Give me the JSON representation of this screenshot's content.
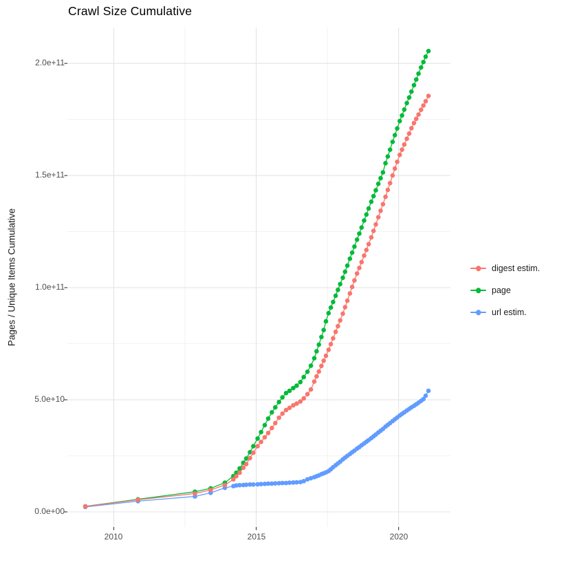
{
  "chart_data": {
    "type": "scatter",
    "subtype": "cumulative line + point series (ggplot style)",
    "title": "Crawl Size Cumulative",
    "xlabel": "",
    "ylabel": "Pages / Unique Items Cumulative",
    "unit": "point values given as [year, billions_of_items]; 50 billions = 5.0e+10 on axis",
    "legend_position": "right-middle",
    "grid": "white panel, light-gray major and minor gridlines, no panel border",
    "axes": {
      "x_tick_labels": [
        "2010",
        "2015",
        "2020"
      ],
      "x_tick_values": [
        2010,
        2015,
        2020
      ],
      "x_minor_values": [
        2012.5,
        2017.5
      ],
      "y_tick_labels": [
        "0.0e+00",
        "5.0e+10",
        "1.0e+11",
        "1.5e+11",
        "2.0e+11"
      ],
      "y_tick_values_billions": [
        0,
        50,
        100,
        150,
        200
      ],
      "y_minor_values_billions": [
        25,
        75,
        125,
        175
      ],
      "xlim": [
        2008.37,
        2021.82
      ],
      "ylim_billions": [
        -6.75,
        216
      ]
    },
    "series": [
      {
        "name": "digest estim.",
        "color": "#F8766D",
        "points": [
          [
            2009.0,
            2.4
          ],
          [
            2010.85,
            5.4
          ],
          [
            2012.85,
            8.2
          ],
          [
            2013.4,
            9.8
          ],
          [
            2013.9,
            12.0
          ],
          [
            2014.2,
            14.5
          ],
          [
            2014.3,
            15.9
          ],
          [
            2014.42,
            17.5
          ],
          [
            2014.55,
            19.7
          ],
          [
            2014.65,
            21.3
          ],
          [
            2014.78,
            24.0
          ],
          [
            2014.9,
            26.4
          ],
          [
            2015.05,
            29.3
          ],
          [
            2015.17,
            31.2
          ],
          [
            2015.3,
            33.3
          ],
          [
            2015.42,
            35.2
          ],
          [
            2015.55,
            37.4
          ],
          [
            2015.67,
            39.6
          ],
          [
            2015.8,
            42.0
          ],
          [
            2015.92,
            43.8
          ],
          [
            2016.05,
            45.4
          ],
          [
            2016.17,
            46.4
          ],
          [
            2016.3,
            47.5
          ],
          [
            2016.42,
            48.3
          ],
          [
            2016.55,
            49.2
          ],
          [
            2016.67,
            50.6
          ],
          [
            2016.8,
            52.5
          ],
          [
            2016.92,
            54.6
          ],
          [
            2017.04,
            58.1
          ],
          [
            2017.12,
            60.4
          ],
          [
            2017.2,
            62.6
          ],
          [
            2017.29,
            65.1
          ],
          [
            2017.37,
            67.4
          ],
          [
            2017.45,
            69.6
          ],
          [
            2017.54,
            72.3
          ],
          [
            2017.62,
            74.8
          ],
          [
            2017.7,
            77.4
          ],
          [
            2017.79,
            80.3
          ],
          [
            2017.87,
            82.8
          ],
          [
            2017.95,
            85.4
          ],
          [
            2018.04,
            88.4
          ],
          [
            2018.12,
            91.3
          ],
          [
            2018.2,
            94.2
          ],
          [
            2018.29,
            97.4
          ],
          [
            2018.37,
            100.3
          ],
          [
            2018.45,
            103.2
          ],
          [
            2018.54,
            106.3
          ],
          [
            2018.62,
            108.8
          ],
          [
            2018.7,
            111.4
          ],
          [
            2018.79,
            114.3
          ],
          [
            2018.87,
            116.8
          ],
          [
            2018.95,
            119.4
          ],
          [
            2019.04,
            122.4
          ],
          [
            2019.12,
            125.3
          ],
          [
            2019.2,
            128.2
          ],
          [
            2019.29,
            131.4
          ],
          [
            2019.37,
            134.3
          ],
          [
            2019.45,
            137.2
          ],
          [
            2019.54,
            140.5
          ],
          [
            2019.62,
            143.6
          ],
          [
            2019.7,
            146.6
          ],
          [
            2019.79,
            150.0
          ],
          [
            2019.87,
            153.1
          ],
          [
            2019.95,
            156.1
          ],
          [
            2020.04,
            159.2
          ],
          [
            2020.12,
            161.5
          ],
          [
            2020.2,
            163.8
          ],
          [
            2020.29,
            166.4
          ],
          [
            2020.37,
            168.7
          ],
          [
            2020.45,
            171.1
          ],
          [
            2020.54,
            173.4
          ],
          [
            2020.62,
            175.3
          ],
          [
            2020.7,
            177.2
          ],
          [
            2020.79,
            179.3
          ],
          [
            2020.87,
            181.2
          ],
          [
            2020.95,
            183.1
          ],
          [
            2021.05,
            185.5
          ]
        ]
      },
      {
        "name": "page",
        "color": "#00BA38",
        "points": [
          [
            2009.0,
            2.5
          ],
          [
            2010.85,
            5.6
          ],
          [
            2012.85,
            9.0
          ],
          [
            2013.4,
            10.5
          ],
          [
            2013.9,
            13.0
          ],
          [
            2014.2,
            16.0
          ],
          [
            2014.3,
            17.5
          ],
          [
            2014.42,
            19.4
          ],
          [
            2014.55,
            21.9
          ],
          [
            2014.65,
            23.8
          ],
          [
            2014.78,
            26.6
          ],
          [
            2014.9,
            29.3
          ],
          [
            2015.05,
            32.7
          ],
          [
            2015.17,
            35.6
          ],
          [
            2015.3,
            38.7
          ],
          [
            2015.42,
            41.6
          ],
          [
            2015.55,
            44.4
          ],
          [
            2015.67,
            46.6
          ],
          [
            2015.8,
            49.0
          ],
          [
            2015.92,
            51.1
          ],
          [
            2016.05,
            53.0
          ],
          [
            2016.17,
            54.0
          ],
          [
            2016.3,
            55.2
          ],
          [
            2016.42,
            56.3
          ],
          [
            2016.55,
            57.9
          ],
          [
            2016.67,
            60.1
          ],
          [
            2016.8,
            62.5
          ],
          [
            2016.92,
            65.2
          ],
          [
            2017.04,
            68.5
          ],
          [
            2017.12,
            71.6
          ],
          [
            2017.2,
            74.6
          ],
          [
            2017.29,
            78.0
          ],
          [
            2017.37,
            81.1
          ],
          [
            2017.45,
            85.0
          ],
          [
            2017.54,
            88.6
          ],
          [
            2017.62,
            91.1
          ],
          [
            2017.7,
            93.6
          ],
          [
            2017.79,
            96.4
          ],
          [
            2017.87,
            99.0
          ],
          [
            2017.95,
            101.6
          ],
          [
            2018.04,
            104.4
          ],
          [
            2018.12,
            107.1
          ],
          [
            2018.2,
            109.8
          ],
          [
            2018.29,
            112.9
          ],
          [
            2018.37,
            115.6
          ],
          [
            2018.45,
            118.3
          ],
          [
            2018.54,
            121.4
          ],
          [
            2018.62,
            124.1
          ],
          [
            2018.7,
            126.8
          ],
          [
            2018.79,
            129.9
          ],
          [
            2018.87,
            132.6
          ],
          [
            2018.95,
            135.3
          ],
          [
            2019.04,
            138.3
          ],
          [
            2019.12,
            140.8
          ],
          [
            2019.2,
            143.4
          ],
          [
            2019.29,
            146.3
          ],
          [
            2019.37,
            148.8
          ],
          [
            2019.45,
            151.4
          ],
          [
            2019.54,
            155.5
          ],
          [
            2019.62,
            158.5
          ],
          [
            2019.7,
            161.5
          ],
          [
            2019.79,
            165.0
          ],
          [
            2019.87,
            168.0
          ],
          [
            2019.95,
            171.0
          ],
          [
            2020.04,
            174.3
          ],
          [
            2020.12,
            176.8
          ],
          [
            2020.2,
            179.4
          ],
          [
            2020.29,
            182.3
          ],
          [
            2020.37,
            184.8
          ],
          [
            2020.45,
            187.4
          ],
          [
            2020.54,
            190.3
          ],
          [
            2020.62,
            192.8
          ],
          [
            2020.7,
            195.4
          ],
          [
            2020.79,
            198.2
          ],
          [
            2020.87,
            200.6
          ],
          [
            2020.95,
            203.0
          ],
          [
            2021.05,
            205.5
          ]
        ]
      },
      {
        "name": "url estim.",
        "color": "#619CFF",
        "points": [
          [
            2009.0,
            2.2
          ],
          [
            2010.85,
            4.8
          ],
          [
            2012.85,
            6.9
          ],
          [
            2013.4,
            8.5
          ],
          [
            2013.9,
            10.7
          ],
          [
            2014.2,
            11.5
          ],
          [
            2014.3,
            11.8
          ],
          [
            2014.42,
            11.9
          ],
          [
            2014.55,
            12.0
          ],
          [
            2014.65,
            12.1
          ],
          [
            2014.78,
            12.2
          ],
          [
            2014.9,
            12.2
          ],
          [
            2015.05,
            12.3
          ],
          [
            2015.17,
            12.4
          ],
          [
            2015.3,
            12.5
          ],
          [
            2015.42,
            12.6
          ],
          [
            2015.55,
            12.6
          ],
          [
            2015.67,
            12.7
          ],
          [
            2015.8,
            12.8
          ],
          [
            2015.92,
            12.9
          ],
          [
            2016.05,
            12.9
          ],
          [
            2016.17,
            13.0
          ],
          [
            2016.3,
            13.1
          ],
          [
            2016.42,
            13.2
          ],
          [
            2016.55,
            13.3
          ],
          [
            2016.67,
            13.7
          ],
          [
            2016.8,
            14.5
          ],
          [
            2016.92,
            15.0
          ],
          [
            2017.04,
            15.5
          ],
          [
            2017.12,
            15.9
          ],
          [
            2017.2,
            16.3
          ],
          [
            2017.29,
            16.8
          ],
          [
            2017.37,
            17.2
          ],
          [
            2017.45,
            17.6
          ],
          [
            2017.54,
            18.2
          ],
          [
            2017.62,
            19.0
          ],
          [
            2017.7,
            19.9
          ],
          [
            2017.79,
            20.8
          ],
          [
            2017.87,
            21.6
          ],
          [
            2017.95,
            22.4
          ],
          [
            2018.04,
            23.4
          ],
          [
            2018.12,
            24.2
          ],
          [
            2018.2,
            25.0
          ],
          [
            2018.29,
            25.8
          ],
          [
            2018.37,
            26.6
          ],
          [
            2018.45,
            27.3
          ],
          [
            2018.54,
            28.2
          ],
          [
            2018.62,
            28.9
          ],
          [
            2018.7,
            29.7
          ],
          [
            2018.79,
            30.5
          ],
          [
            2018.87,
            31.3
          ],
          [
            2018.95,
            32.0
          ],
          [
            2019.04,
            32.9
          ],
          [
            2019.12,
            33.7
          ],
          [
            2019.2,
            34.5
          ],
          [
            2019.29,
            35.4
          ],
          [
            2019.37,
            36.2
          ],
          [
            2019.45,
            37.0
          ],
          [
            2019.54,
            38.0
          ],
          [
            2019.62,
            38.8
          ],
          [
            2019.7,
            39.6
          ],
          [
            2019.79,
            40.5
          ],
          [
            2019.87,
            41.3
          ],
          [
            2019.95,
            42.1
          ],
          [
            2020.04,
            43.0
          ],
          [
            2020.12,
            43.7
          ],
          [
            2020.2,
            44.4
          ],
          [
            2020.29,
            45.2
          ],
          [
            2020.37,
            45.9
          ],
          [
            2020.45,
            46.6
          ],
          [
            2020.54,
            47.3
          ],
          [
            2020.62,
            48.0
          ],
          [
            2020.7,
            48.7
          ],
          [
            2020.79,
            49.5
          ],
          [
            2020.87,
            50.3
          ],
          [
            2020.95,
            51.8
          ],
          [
            2021.05,
            54.0
          ]
        ]
      }
    ]
  }
}
